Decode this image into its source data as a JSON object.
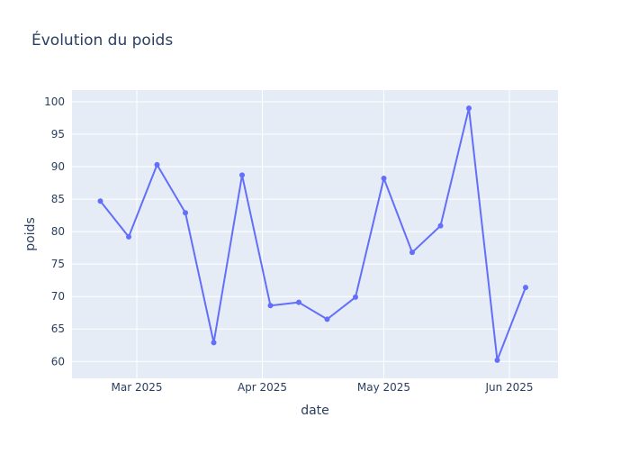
{
  "chart_data": {
    "type": "line",
    "title": "Évolution du poids",
    "xlabel": "date",
    "ylabel": "poids",
    "x_ticks": [
      {
        "date": "2025-03-01",
        "label": "Mar 2025"
      },
      {
        "date": "2025-04-01",
        "label": "Apr 2025"
      },
      {
        "date": "2025-05-01",
        "label": "May 2025"
      },
      {
        "date": "2025-06-01",
        "label": "Jun 2025"
      }
    ],
    "y_ticks": [
      60,
      65,
      70,
      75,
      80,
      85,
      90,
      95,
      100
    ],
    "xlim": [
      "2025-02-13",
      "2025-06-13"
    ],
    "ylim": [
      57.4,
      101.8
    ],
    "grid": true,
    "series": [
      {
        "color": "#636efa",
        "points": [
          {
            "x": "2025-02-20",
            "y": 84.7
          },
          {
            "x": "2025-02-27",
            "y": 79.2
          },
          {
            "x": "2025-03-06",
            "y": 90.3
          },
          {
            "x": "2025-03-13",
            "y": 82.9
          },
          {
            "x": "2025-03-20",
            "y": 62.9
          },
          {
            "x": "2025-03-27",
            "y": 88.7
          },
          {
            "x": "2025-04-03",
            "y": 68.6
          },
          {
            "x": "2025-04-10",
            "y": 69.1
          },
          {
            "x": "2025-04-17",
            "y": 66.5
          },
          {
            "x": "2025-04-24",
            "y": 69.9
          },
          {
            "x": "2025-05-01",
            "y": 88.2
          },
          {
            "x": "2025-05-08",
            "y": 76.8
          },
          {
            "x": "2025-05-15",
            "y": 80.9
          },
          {
            "x": "2025-05-22",
            "y": 99.0
          },
          {
            "x": "2025-05-29",
            "y": 60.2
          },
          {
            "x": "2025-06-05",
            "y": 71.4
          }
        ]
      }
    ]
  }
}
